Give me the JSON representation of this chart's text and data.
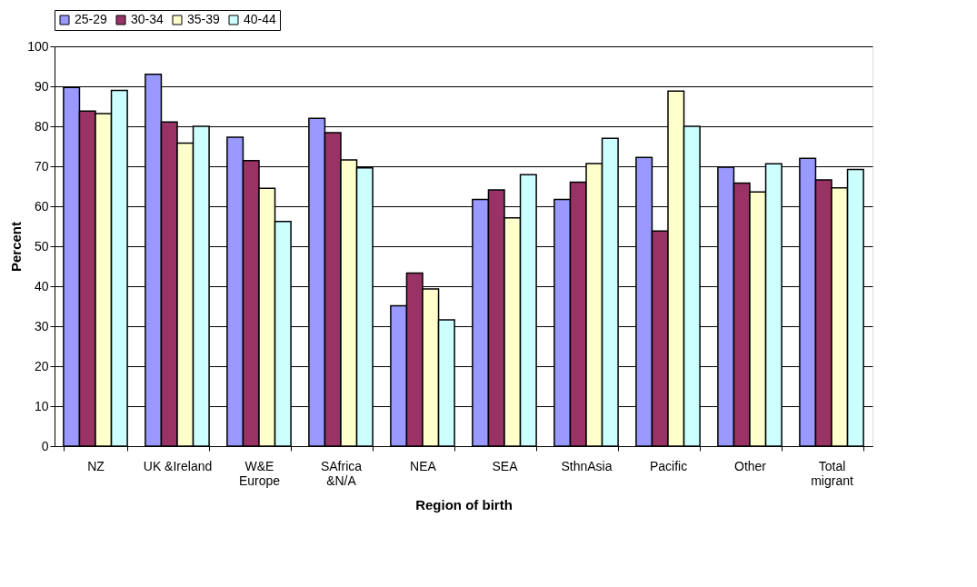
{
  "chart_data": {
    "type": "bar",
    "xlabel": "Region of birth",
    "ylabel": "Percent",
    "categories": [
      "NZ",
      "UK &Ireland",
      "W&E\nEurope",
      "SAfrica\n&N/A",
      "NEA",
      "SEA",
      "SthnAsia",
      "Pacific",
      "Other",
      "Total\nmigrant"
    ],
    "series": [
      {
        "name": "25-29",
        "color": "#9999ff",
        "values": [
          89.7,
          93,
          77.3,
          82,
          35.1,
          61.7,
          61.7,
          72.2,
          69.8,
          72
        ]
      },
      {
        "name": "30-34",
        "color": "#993366",
        "values": [
          83.8,
          81.1,
          71.4,
          78.4,
          43.3,
          64.1,
          66,
          53.8,
          65.8,
          66.6
        ]
      },
      {
        "name": "35-39",
        "color": "#ffffcc",
        "values": [
          83.2,
          75.8,
          64.5,
          71.6,
          39.3,
          57.1,
          70.7,
          88.8,
          63.6,
          64.6
        ]
      },
      {
        "name": "40-44",
        "color": "#ccffff",
        "values": [
          89,
          80,
          56.2,
          69.6,
          31.6,
          67.9,
          77,
          80,
          70.6,
          69.2
        ]
      }
    ],
    "ylim": [
      0,
      100
    ],
    "yticks": [
      0,
      10,
      20,
      30,
      40,
      50,
      60,
      70,
      80,
      90,
      100
    ],
    "grid": "y",
    "legend": "top"
  }
}
